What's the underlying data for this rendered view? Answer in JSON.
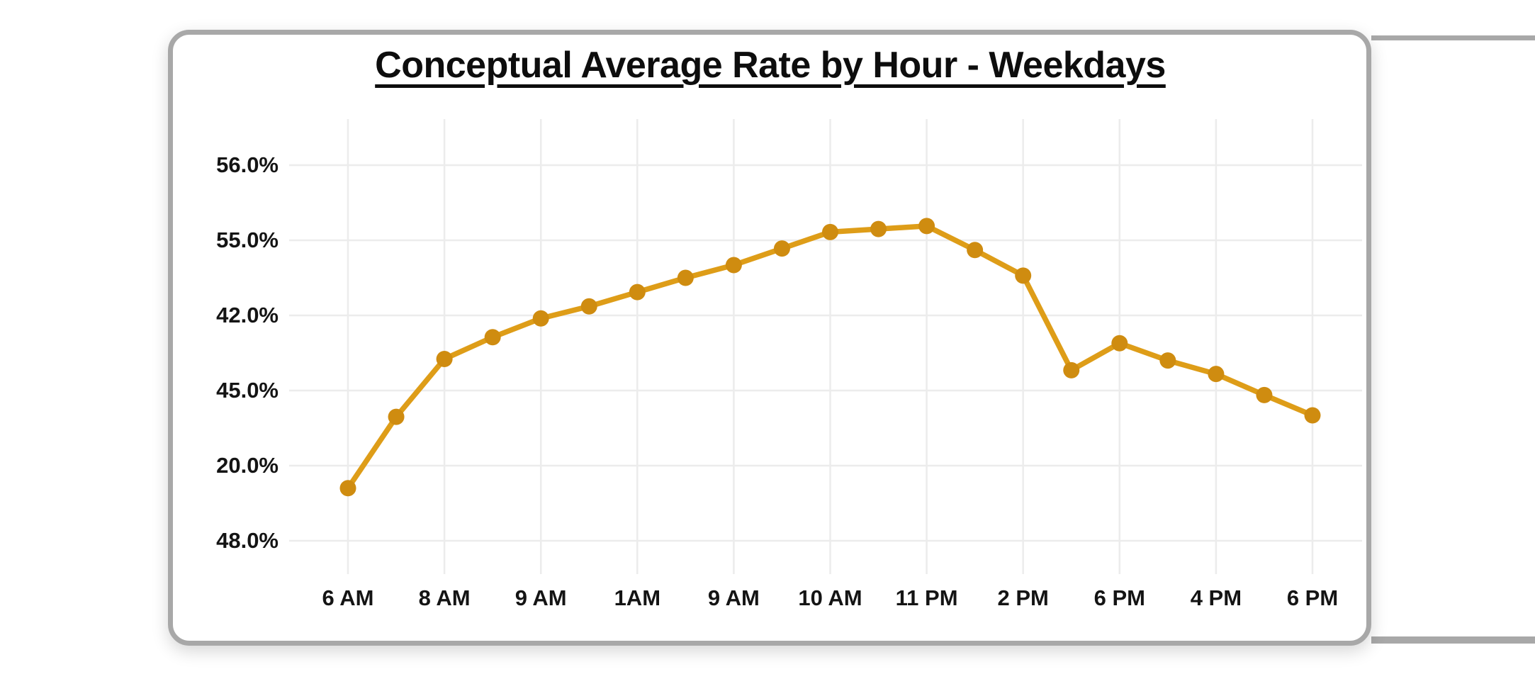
{
  "page": {
    "background": "#ffffff",
    "frame_color": "#a8a8a8"
  },
  "card": {
    "background": "#ffffff",
    "border_color": "#a8a8a8"
  },
  "chart": {
    "title": "Conceptual Average Rate by Hour - Weekdays",
    "title_color": "#0d0d0d",
    "line_color": "#de9d18",
    "marker_color": "#cf8c10",
    "grid_color": "#ececec",
    "tick_label_color": "#141414"
  },
  "chart_data": {
    "type": "line",
    "title": "Conceptual Average Rate by Hour - Weekdays",
    "grid": true,
    "legend": null,
    "x_ticks": [
      {
        "t": 0,
        "label": "6 AM"
      },
      {
        "t": 2,
        "label": "8 AM"
      },
      {
        "t": 4,
        "label": "9 AM"
      },
      {
        "t": 6,
        "label": "1AM"
      },
      {
        "t": 8,
        "label": "9 AM"
      },
      {
        "t": 10,
        "label": "10 AM"
      },
      {
        "t": 12,
        "label": "11 PM"
      },
      {
        "t": 14,
        "label": "2 PM"
      },
      {
        "t": 16,
        "label": "6 PM"
      },
      {
        "t": 18,
        "label": "4 PM"
      },
      {
        "t": 20,
        "label": "6 PM"
      }
    ],
    "y_ticks": [
      {
        "unit": 5,
        "label": "56.0%"
      },
      {
        "unit": 4,
        "label": "55.0%"
      },
      {
        "unit": 3,
        "label": "42.0%"
      },
      {
        "unit": 2,
        "label": "45.0%"
      },
      {
        "unit": 1,
        "label": "20.0%"
      },
      {
        "unit": 0,
        "label": "48.0%"
      }
    ],
    "y_unit_note": "u = evenly-spaced gridline units above the bottom gridline (printed y tick labels are non-monotonic as shown on screen)",
    "points": [
      {
        "t": 0,
        "u": 0.7
      },
      {
        "t": 1,
        "u": 1.65
      },
      {
        "t": 2,
        "u": 2.42
      },
      {
        "t": 3,
        "u": 2.71
      },
      {
        "t": 4,
        "u": 2.96
      },
      {
        "t": 5,
        "u": 3.12
      },
      {
        "t": 6,
        "u": 3.31
      },
      {
        "t": 7,
        "u": 3.5
      },
      {
        "t": 8,
        "u": 3.67
      },
      {
        "t": 9,
        "u": 3.89
      },
      {
        "t": 10,
        "u": 4.11
      },
      {
        "t": 11,
        "u": 4.15
      },
      {
        "t": 12,
        "u": 4.19
      },
      {
        "t": 13,
        "u": 3.87
      },
      {
        "t": 14,
        "u": 3.53
      },
      {
        "t": 15,
        "u": 2.27
      },
      {
        "t": 16,
        "u": 2.63
      },
      {
        "t": 17,
        "u": 2.4
      },
      {
        "t": 18,
        "u": 2.22
      },
      {
        "t": 19,
        "u": 1.94
      },
      {
        "t": 20,
        "u": 1.67
      }
    ]
  }
}
